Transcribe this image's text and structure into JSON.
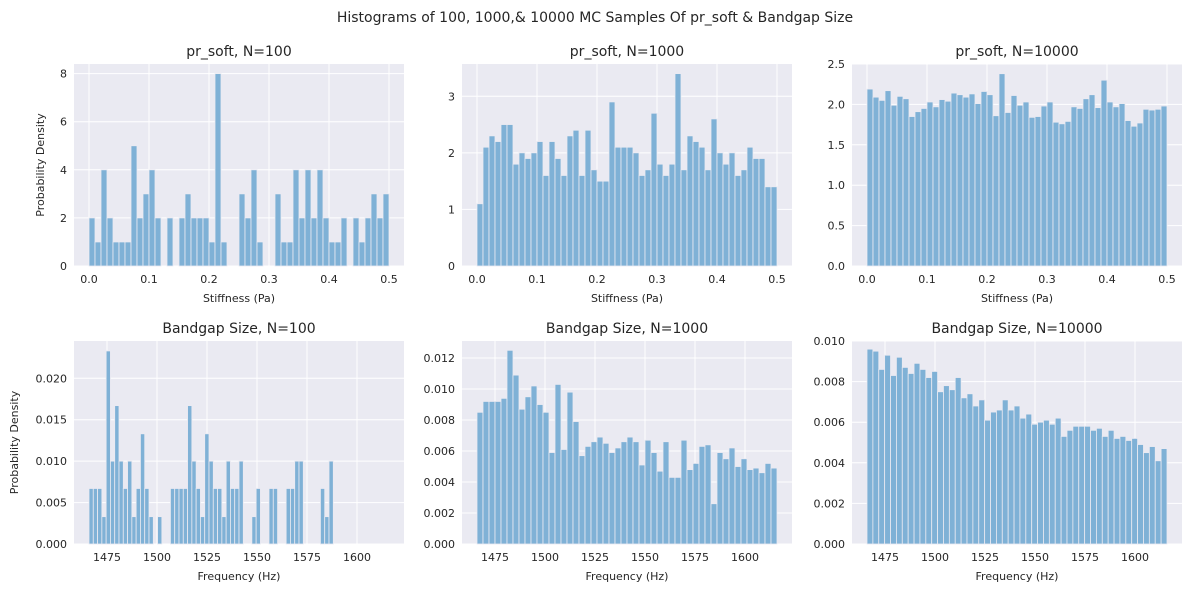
{
  "figure": {
    "suptitle": "Histograms of 100, 1000,& 10000 MC Samples Of pr_soft & Bandgap Size",
    "style": {
      "panel_bg": "#eaeaf2",
      "grid": "#ffffff",
      "bar_fill": "#7fb1d6",
      "bar_edge": "#eaeaf2",
      "text": "#262626"
    }
  },
  "chart_data": [
    {
      "type": "bar",
      "title": "pr_soft, N=100",
      "xlabel": "Stiffness (Pa)",
      "ylabel": "Probability Density",
      "bin_start": 0.0,
      "bin_end": 0.5,
      "xlim": [
        -0.025,
        0.525
      ],
      "ylim": [
        0,
        8.4
      ],
      "xticks": [
        0.0,
        0.1,
        0.2,
        0.3,
        0.4,
        0.5
      ],
      "xtick_labels": [
        "0.0",
        "0.1",
        "0.2",
        "0.3",
        "0.4",
        "0.5"
      ],
      "yticks": [
        0,
        2,
        4,
        6,
        8
      ],
      "ytick_labels": [
        "0",
        "2",
        "4",
        "6",
        "8"
      ],
      "values": [
        2,
        1,
        4,
        2,
        1,
        1,
        1,
        5,
        2,
        3,
        4,
        2,
        0,
        2,
        0,
        2,
        3,
        2,
        2,
        2,
        1,
        8,
        1,
        0,
        0,
        3,
        2,
        4,
        1,
        0,
        0,
        3,
        1,
        1,
        4,
        2,
        4,
        2,
        4,
        2,
        1,
        1,
        2,
        0,
        2,
        1,
        2,
        3,
        2,
        3
      ]
    },
    {
      "type": "bar",
      "title": "pr_soft, N=1000",
      "xlabel": "Stiffness (Pa)",
      "ylabel": "",
      "bin_start": 0.0,
      "bin_end": 0.5,
      "xlim": [
        -0.025,
        0.525
      ],
      "ylim": [
        0,
        3.57
      ],
      "xticks": [
        0.0,
        0.1,
        0.2,
        0.3,
        0.4,
        0.5
      ],
      "xtick_labels": [
        "0.0",
        "0.1",
        "0.2",
        "0.3",
        "0.4",
        "0.5"
      ],
      "yticks": [
        0,
        1,
        2,
        3
      ],
      "ytick_labels": [
        "0",
        "1",
        "2",
        "3"
      ],
      "values": [
        1.1,
        2.1,
        2.3,
        2.2,
        2.5,
        2.5,
        1.8,
        2.0,
        1.9,
        2.0,
        2.2,
        1.6,
        2.2,
        1.9,
        1.6,
        2.3,
        2.4,
        1.6,
        2.4,
        1.7,
        1.5,
        1.5,
        2.9,
        2.1,
        2.1,
        2.1,
        2.0,
        1.6,
        1.7,
        2.7,
        1.8,
        1.6,
        1.8,
        3.4,
        1.7,
        2.3,
        2.2,
        2.1,
        1.7,
        2.6,
        2.0,
        1.8,
        2.0,
        1.6,
        1.7,
        2.1,
        1.9,
        1.9,
        1.4,
        1.4
      ]
    },
    {
      "type": "bar",
      "title": "pr_soft, N=10000",
      "xlabel": "Stiffness (Pa)",
      "ylabel": "",
      "bin_start": 0.0,
      "bin_end": 0.5,
      "xlim": [
        -0.025,
        0.525
      ],
      "ylim": [
        0,
        2.5
      ],
      "xticks": [
        0.0,
        0.1,
        0.2,
        0.3,
        0.4,
        0.5
      ],
      "xtick_labels": [
        "0.0",
        "0.1",
        "0.2",
        "0.3",
        "0.4",
        "0.5"
      ],
      "yticks": [
        0.0,
        0.5,
        1.0,
        1.5,
        2.0,
        2.5
      ],
      "ytick_labels": [
        "0.0",
        "0.5",
        "1.0",
        "1.5",
        "2.0",
        "2.5"
      ],
      "values": [
        2.19,
        2.09,
        2.05,
        2.17,
        1.99,
        2.1,
        2.07,
        1.85,
        1.91,
        1.95,
        2.03,
        1.97,
        2.06,
        2.04,
        2.14,
        2.12,
        2.09,
        2.13,
        2.01,
        2.16,
        2.12,
        1.86,
        2.38,
        1.9,
        2.11,
        1.99,
        2.03,
        1.84,
        1.85,
        1.98,
        2.03,
        1.78,
        1.76,
        1.79,
        1.97,
        1.95,
        2.07,
        2.12,
        1.96,
        2.3,
        2.03,
        1.97,
        2.01,
        1.8,
        1.73,
        1.77,
        1.94,
        1.93,
        1.94,
        1.98
      ]
    },
    {
      "type": "bar",
      "title": "Bandgap Size, N=100",
      "xlabel": "Frequency (Hz)",
      "ylabel": "Probability Density",
      "bin_start": 1466,
      "bin_end": 1616,
      "xlim": [
        1458.5,
        1623.5
      ],
      "ylim": [
        0,
        0.0245
      ],
      "xticks": [
        1475,
        1500,
        1525,
        1550,
        1575,
        1600
      ],
      "xtick_labels": [
        "1475",
        "1500",
        "1525",
        "1550",
        "1575",
        "1600"
      ],
      "yticks": [
        0.0,
        0.005,
        0.01,
        0.015,
        0.02
      ],
      "ytick_labels": [
        "0.000",
        "0.005",
        "0.010",
        "0.015",
        "0.020"
      ],
      "values": [
        0.0067,
        0.0067,
        0.0067,
        0.0033,
        0.0233,
        0.01,
        0.0167,
        0.01,
        0.0067,
        0.01,
        0.0033,
        0.0067,
        0.0133,
        0.0067,
        0.0033,
        0,
        0.0033,
        0,
        0,
        0.0067,
        0.0067,
        0.0067,
        0.0067,
        0.0167,
        0.01,
        0.0067,
        0.0033,
        0.0133,
        0.01,
        0.0067,
        0.0067,
        0.0033,
        0.01,
        0.0067,
        0.0067,
        0.01,
        0,
        0,
        0.0033,
        0.0067,
        0,
        0,
        0.0067,
        0.0067,
        0,
        0,
        0.0067,
        0.0067,
        0.01,
        0.01,
        0,
        0,
        0,
        0,
        0.0067,
        0.0033,
        0.01,
        0,
        0,
        0,
        0,
        0,
        0,
        0,
        0,
        0,
        0,
        0,
        0,
        0
      ]
    },
    {
      "type": "bar",
      "title": "Bandgap Size, N=1000",
      "xlabel": "Frequency (Hz)",
      "ylabel": "",
      "bin_start": 1466,
      "bin_end": 1616,
      "xlim": [
        1458.5,
        1623.5
      ],
      "ylim": [
        0,
        0.0131
      ],
      "xticks": [
        1475,
        1500,
        1525,
        1550,
        1575,
        1600
      ],
      "xtick_labels": [
        "1475",
        "1500",
        "1525",
        "1550",
        "1575",
        "1600"
      ],
      "yticks": [
        0.0,
        0.002,
        0.004,
        0.006,
        0.008,
        0.01,
        0.012
      ],
      "ytick_labels": [
        "0.000",
        "0.002",
        "0.004",
        "0.006",
        "0.008",
        "0.010",
        "0.012"
      ],
      "values": [
        0.0085,
        0.0092,
        0.0092,
        0.0092,
        0.0094,
        0.0125,
        0.0109,
        0.0087,
        0.0095,
        0.0102,
        0.009,
        0.0085,
        0.0059,
        0.0103,
        0.0061,
        0.0098,
        0.0079,
        0.0057,
        0.0063,
        0.0066,
        0.0069,
        0.0065,
        0.0059,
        0.0062,
        0.0066,
        0.0069,
        0.0066,
        0.0051,
        0.0067,
        0.0059,
        0.0047,
        0.0066,
        0.0043,
        0.0043,
        0.0067,
        0.0048,
        0.0052,
        0.0063,
        0.0064,
        0.0026,
        0.0059,
        0.0055,
        0.0062,
        0.005,
        0.0055,
        0.0048,
        0.0049,
        0.0046,
        0.0052,
        0.0049
      ]
    },
    {
      "type": "bar",
      "title": "Bandgap Size, N=10000",
      "xlabel": "Frequency (Hz)",
      "ylabel": "",
      "bin_start": 1466,
      "bin_end": 1616,
      "xlim": [
        1458.5,
        1623.5
      ],
      "ylim": [
        0,
        0.01
      ],
      "xticks": [
        1475,
        1500,
        1525,
        1550,
        1575,
        1600
      ],
      "xtick_labels": [
        "1475",
        "1500",
        "1525",
        "1550",
        "1575",
        "1600"
      ],
      "yticks": [
        0.0,
        0.002,
        0.004,
        0.006,
        0.008,
        0.01
      ],
      "ytick_labels": [
        "0.000",
        "0.002",
        "0.004",
        "0.006",
        "0.008",
        "0.010"
      ],
      "values": [
        0.0096,
        0.0095,
        0.0086,
        0.0093,
        0.0083,
        0.0092,
        0.0087,
        0.0084,
        0.0089,
        0.0086,
        0.0082,
        0.0085,
        0.0075,
        0.0078,
        0.0076,
        0.0082,
        0.0072,
        0.0074,
        0.0068,
        0.0071,
        0.0061,
        0.0065,
        0.0066,
        0.0071,
        0.0066,
        0.0068,
        0.0062,
        0.0064,
        0.0059,
        0.006,
        0.0061,
        0.0059,
        0.0062,
        0.0053,
        0.0056,
        0.0058,
        0.0058,
        0.0058,
        0.0056,
        0.0057,
        0.0053,
        0.0056,
        0.0052,
        0.0053,
        0.0051,
        0.0052,
        0.0049,
        0.0045,
        0.0048,
        0.0041,
        0.0047
      ]
    }
  ]
}
